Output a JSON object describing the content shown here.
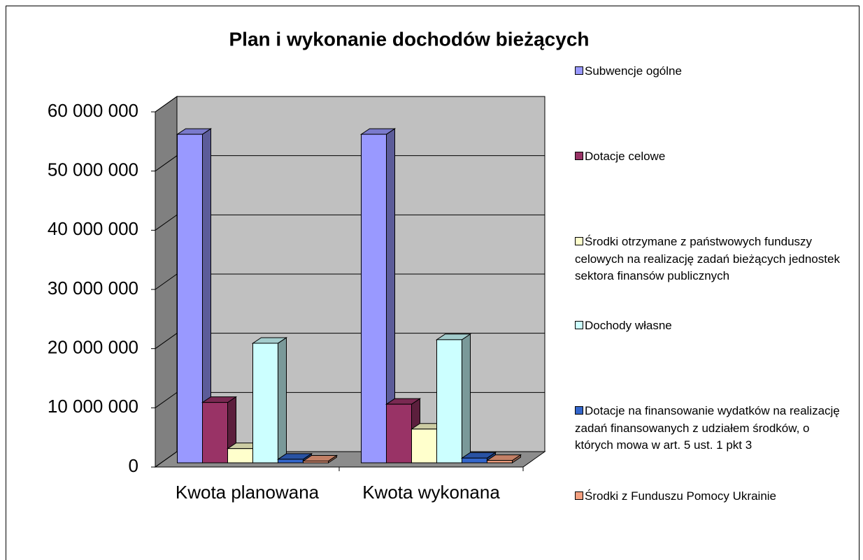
{
  "chart_data": {
    "type": "bar3d",
    "title": "Plan i wykonanie dochodów bieżących",
    "categories": [
      "Kwota planowana",
      "Kwota wykonana"
    ],
    "series": [
      {
        "name": "Subwencje ogólne",
        "color": "#9999ff",
        "values": [
          55500000,
          55500000
        ]
      },
      {
        "name": "Dotacje celowe",
        "color": "#993366",
        "values": [
          10200000,
          9900000
        ]
      },
      {
        "name": "Środki otrzymane z państwowych funduszy celowych na realizację zadań bieżących jednostek sektora finansów publicznych",
        "color": "#ffffcc",
        "values": [
          2400000,
          5700000
        ]
      },
      {
        "name": "Dochody własne",
        "color": "#ccffff",
        "values": [
          20200000,
          20800000
        ]
      },
      {
        "name": "Dotacje na finansowanie wydatków na realizację zadań finansowanych z udziałem środków, o których mowa w art. 5 ust. 1 pkt 3",
        "color": "#3366cc",
        "values": [
          600000,
          800000
        ]
      },
      {
        "name": "Środki z Funduszu Pomocy Ukrainie",
        "color": "#f4a080",
        "values": [
          300000,
          400000
        ]
      }
    ],
    "ylim": [
      0,
      60000000
    ],
    "yticks": [
      0,
      {
        "value": 10000000,
        "label": "10 000 000"
      },
      {
        "value": 20000000,
        "label": "20 000 000"
      },
      {
        "value": 30000000,
        "label": "30 000 000"
      },
      {
        "value": 40000000,
        "label": "40 000 000"
      },
      {
        "value": 50000000,
        "label": "50 000 000"
      },
      {
        "value": 60000000,
        "label": "60 000 000"
      }
    ],
    "grid": true,
    "legend": "right"
  }
}
